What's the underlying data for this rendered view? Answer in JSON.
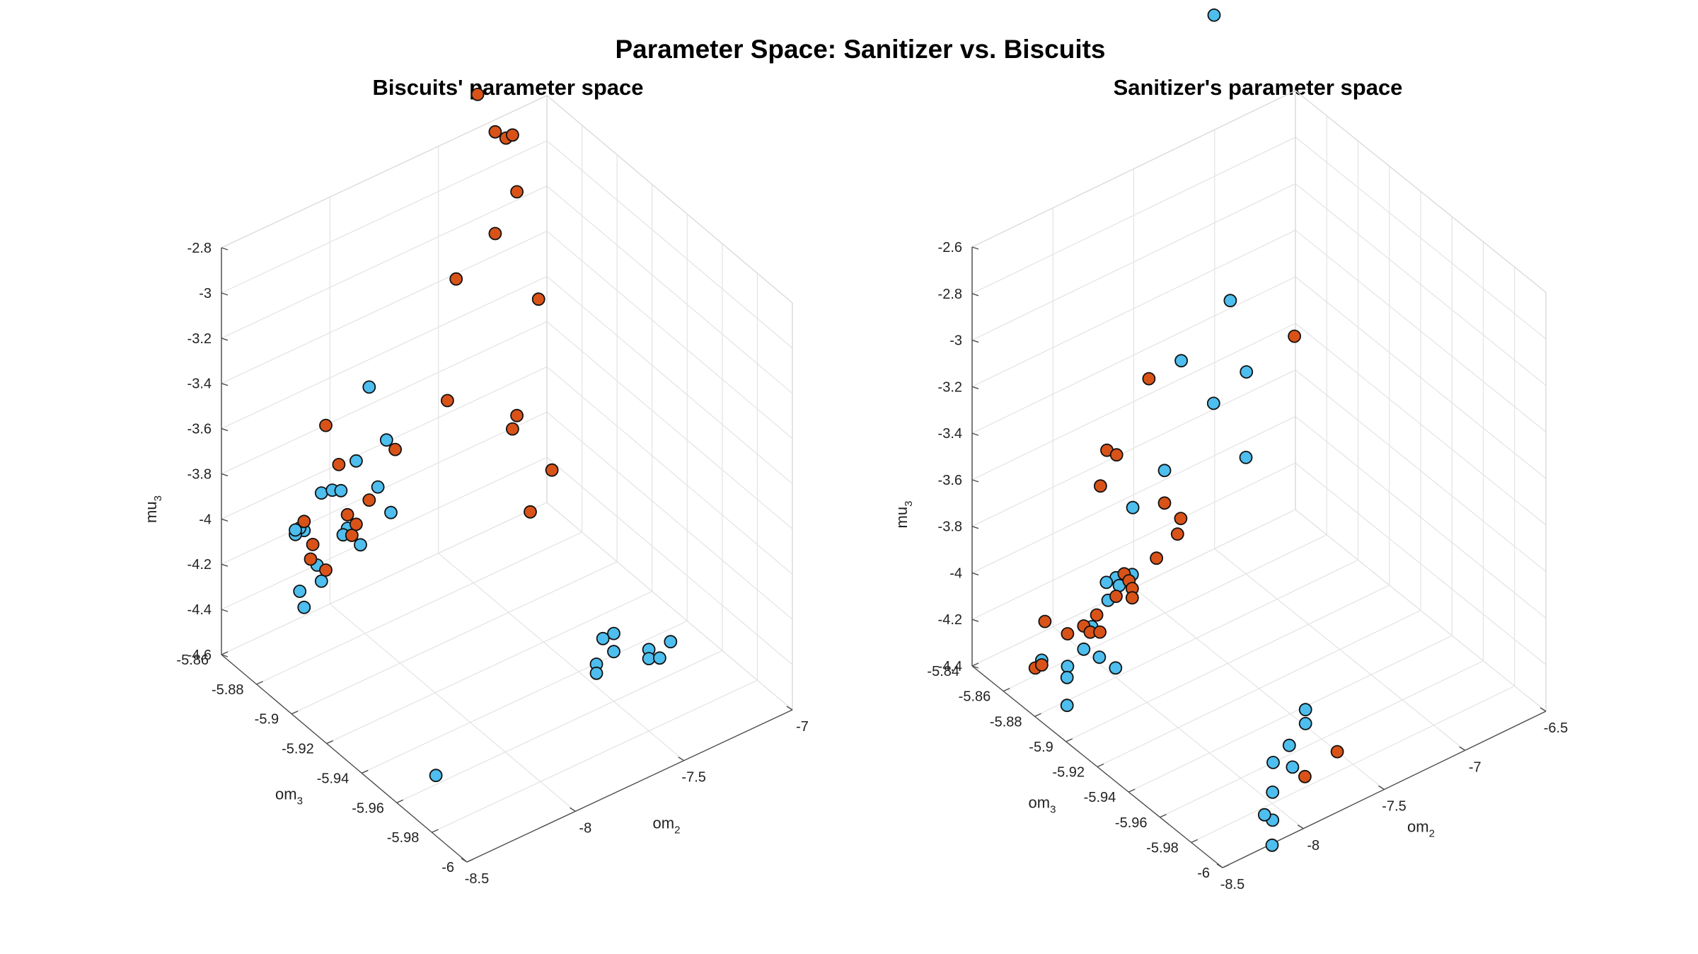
{
  "figure": {
    "title": "Parameter Space: Sanitizer vs. Biscuits"
  },
  "colors": {
    "series_a": "#4DBEEE",
    "series_b": "#D95319",
    "marker_edge": "#111111"
  },
  "chart_data": [
    {
      "type": "scatter3d",
      "title": "Biscuits' parameter space",
      "xlabel": "om",
      "xlabel_sub": "2",
      "ylabel": "om",
      "ylabel_sub": "3",
      "zlabel": "mu",
      "zlabel_sub": "3",
      "xlim": [
        -8.5,
        -7
      ],
      "ylim": [
        -6,
        -5.86
      ],
      "zlim": [
        -4.6,
        -2.8
      ],
      "xticks": [
        "-8.5",
        "-8",
        "-7.5",
        "-7"
      ],
      "yticks": [
        "-6",
        "-5.98",
        "-5.96",
        "-5.94",
        "-5.92",
        "-5.9",
        "-5.88",
        "-5.86"
      ],
      "zticks": [
        "-4.6",
        "-4.4",
        "-4.2",
        "-4",
        "-3.8",
        "-3.6",
        "-3.4",
        "-3.2",
        "-3",
        "-2.8"
      ],
      "grid": true,
      "series": [
        {
          "color": "#4DBEEE",
          "points": [
            [
              -8.2,
              -5.87,
              -4.12
            ],
            [
              -8.22,
              -5.87,
              -4.1
            ],
            [
              -8.24,
              -5.87,
              -4.12
            ],
            [
              -8.24,
              -5.87,
              -4.1
            ],
            [
              -8.14,
              -5.87,
              -4.3
            ],
            [
              -8.0,
              -5.87,
              -4.2
            ],
            [
              -8.02,
              -5.87,
              -4.22
            ],
            [
              -7.98,
              -5.87,
              -4.24
            ],
            [
              -7.94,
              -5.87,
              -4.3
            ],
            [
              -7.96,
              -5.87,
              -3.92
            ],
            [
              -7.9,
              -5.87,
              -3.62
            ],
            [
              -7.82,
              -5.87,
              -3.89
            ],
            [
              -7.8,
              -5.87,
              -4.22
            ],
            [
              -7.86,
              -5.87,
              -4.08
            ],
            [
              -8.12,
              -5.87,
              -3.99
            ],
            [
              -8.07,
              -5.87,
              -4.0
            ],
            [
              -8.03,
              -5.87,
              -4.02
            ],
            [
              -8.22,
              -5.87,
              -4.38
            ],
            [
              -8.12,
              -5.87,
              -4.38
            ],
            [
              -8.2,
              -5.87,
              -4.46
            ],
            [
              -7.4,
              -5.98,
              -4.25
            ],
            [
              -7.5,
              -5.98,
              -4.24
            ],
            [
              -7.5,
              -5.98,
              -4.28
            ],
            [
              -7.45,
              -5.98,
              -4.3
            ],
            [
              -7.5,
              -5.96,
              -4.3
            ],
            [
              -7.55,
              -5.96,
              -4.3
            ],
            [
              -7.58,
              -5.96,
              -4.4
            ],
            [
              -7.58,
              -5.96,
              -4.44
            ],
            [
              -7.5,
              -5.96,
              -4.38
            ],
            [
              -8.32,
              -5.96,
              -4.56
            ]
          ]
        },
        {
          "color": "#D95319",
          "points": [
            [
              -7.4,
              -5.87,
              -2.55
            ],
            [
              -7.4,
              -5.88,
              -2.65
            ],
            [
              -7.35,
              -5.88,
              -2.7
            ],
            [
              -7.32,
              -5.88,
              -2.7
            ],
            [
              -7.3,
              -5.88,
              -2.96
            ],
            [
              -7.2,
              -5.88,
              -3.48
            ],
            [
              -7.4,
              -5.9,
              -4.2
            ],
            [
              -7.3,
              -5.9,
              -4.06
            ],
            [
              -7.3,
              -5.88,
              -3.95
            ],
            [
              -7.32,
              -5.88,
              -4.0
            ],
            [
              -7.4,
              -5.88,
              -3.1
            ],
            [
              -7.58,
              -5.88,
              -3.22
            ],
            [
              -7.62,
              -5.88,
              -3.74
            ],
            [
              -8.1,
              -5.87,
              -3.7
            ],
            [
              -8.04,
              -5.87,
              -3.9
            ],
            [
              -8.2,
              -5.87,
              -4.08
            ],
            [
              -8.16,
              -5.87,
              -4.2
            ],
            [
              -8.17,
              -5.87,
              -4.26
            ],
            [
              -8.1,
              -5.87,
              -4.34
            ],
            [
              -8.0,
              -5.87,
              -4.14
            ],
            [
              -7.98,
              -5.87,
              -4.24
            ],
            [
              -7.96,
              -5.87,
              -4.2
            ],
            [
              -7.9,
              -5.87,
              -4.12
            ],
            [
              -7.78,
              -5.87,
              -3.95
            ]
          ]
        }
      ]
    },
    {
      "type": "scatter3d",
      "title": "Sanitizer's parameter space",
      "xlabel": "om",
      "xlabel_sub": "2",
      "ylabel": "om",
      "ylabel_sub": "3",
      "zlabel": "mu",
      "zlabel_sub": "3",
      "xlim": [
        -8.5,
        -6.5
      ],
      "ylim": [
        -6,
        -5.84
      ],
      "zlim": [
        -4.4,
        -2.6
      ],
      "xticks": [
        "-8.5",
        "-8",
        "-7.5",
        "-7",
        "-6.5"
      ],
      "yticks": [
        "-6",
        "-5.98",
        "-5.96",
        "-5.94",
        "-5.92",
        "-5.9",
        "-5.88",
        "-5.86",
        "-5.84"
      ],
      "zticks": [
        "-4.4",
        "-4.2",
        "-4",
        "-3.8",
        "-3.6",
        "-3.4",
        "-3.2",
        "-3",
        "-2.8",
        "-2.6"
      ],
      "grid": true,
      "series": [
        {
          "color": "#4DBEEE",
          "points": [
            [
              -7.1,
              -5.85,
              -2.02
            ],
            [
              -7.0,
              -5.85,
              -3.28
            ],
            [
              -6.9,
              -5.85,
              -3.62
            ],
            [
              -7.0,
              -5.86,
              -3.9
            ],
            [
              -7.2,
              -5.86,
              -3.6
            ],
            [
              -7.4,
              -5.86,
              -3.35
            ],
            [
              -7.6,
              -5.87,
              -3.7
            ],
            [
              -7.7,
              -5.86,
              -3.88
            ],
            [
              -7.8,
              -5.87,
              -4.08
            ],
            [
              -7.9,
              -5.87,
              -4.06
            ],
            [
              -7.88,
              -5.87,
              -4.1
            ],
            [
              -7.95,
              -5.87,
              -4.14
            ],
            [
              -8.05,
              -5.87,
              -4.22
            ],
            [
              -8.1,
              -5.87,
              -4.3
            ],
            [
              -8.2,
              -5.87,
              -4.34
            ],
            [
              -8.1,
              -5.88,
              -4.28
            ],
            [
              -8.0,
              -5.88,
              -4.36
            ],
            [
              -8.3,
              -5.88,
              -4.42
            ],
            [
              -8.3,
              -5.88,
              -4.3
            ],
            [
              -8.36,
              -5.87,
              -4.26
            ],
            [
              -7.96,
              -5.87,
              -4.06
            ],
            [
              -7.6,
              -5.96,
              -4.24
            ],
            [
              -7.6,
              -5.96,
              -4.3
            ],
            [
              -7.7,
              -5.96,
              -4.36
            ],
            [
              -7.8,
              -5.96,
              -4.4
            ],
            [
              -7.9,
              -5.97,
              -4.44
            ],
            [
              -7.9,
              -5.97,
              -4.56
            ],
            [
              -7.95,
              -5.97,
              -4.52
            ],
            [
              -7.68,
              -5.96,
              -4.46
            ],
            [
              -8.0,
              -5.98,
              -4.58
            ]
          ]
        },
        {
          "color": "#D95319",
          "points": [
            [
              -7.6,
              -5.86,
              -3.36
            ],
            [
              -7.86,
              -5.86,
              -3.58
            ],
            [
              -7.8,
              -5.86,
              -3.62
            ],
            [
              -7.9,
              -5.86,
              -3.72
            ],
            [
              -7.6,
              -5.87,
              -3.84
            ],
            [
              -7.5,
              -5.87,
              -3.94
            ],
            [
              -7.52,
              -5.87,
              -4.0
            ],
            [
              -7.65,
              -5.87,
              -4.06
            ],
            [
              -7.85,
              -5.87,
              -4.06
            ],
            [
              -7.82,
              -5.87,
              -4.1
            ],
            [
              -7.8,
              -5.87,
              -4.14
            ],
            [
              -7.8,
              -5.87,
              -4.18
            ],
            [
              -7.9,
              -5.87,
              -4.14
            ],
            [
              -8.02,
              -5.87,
              -4.18
            ],
            [
              -8.1,
              -5.87,
              -4.2
            ],
            [
              -8.06,
              -5.87,
              -4.24
            ],
            [
              -8.0,
              -5.87,
              -4.26
            ],
            [
              -8.2,
              -5.87,
              -4.2
            ],
            [
              -8.34,
              -5.87,
              -4.1
            ],
            [
              -8.4,
              -5.87,
              -4.28
            ],
            [
              -8.36,
              -5.87,
              -4.28
            ],
            [
              -6.7,
              -5.86,
              -3.48
            ],
            [
              -7.5,
              -5.97,
              -4.4
            ],
            [
              -7.7,
              -5.97,
              -4.44
            ]
          ]
        }
      ]
    }
  ]
}
